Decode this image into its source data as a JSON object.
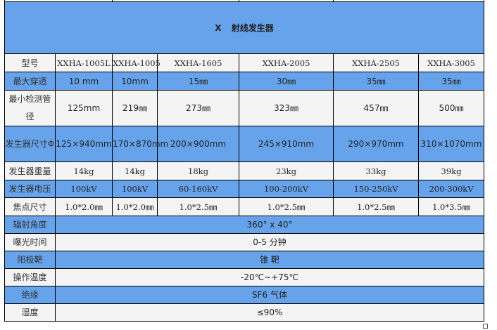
{
  "title": "X 射线发生器",
  "colors": {
    "row_blue": "#66a3eb",
    "row_light": "#f4f4f4"
  },
  "models": {
    "label": "型号",
    "values": [
      "XXHA-1005L",
      "XXHA-1005",
      "XXHA-1605",
      "XXHA-2005",
      "XXHA-2505",
      "XXHA-3005"
    ]
  },
  "rows": [
    {
      "label": "最大穿透",
      "values": [
        "10 mm",
        "10mm",
        "15㎜",
        "30㎜",
        "35㎜",
        "35㎜"
      ]
    },
    {
      "label": "最小检测管径",
      "values": [
        "125mm",
        "219㎜",
        "273㎜",
        "323㎜",
        "457㎜",
        "500㎜"
      ]
    },
    {
      "label": "发生器尺寸Φ",
      "values": [
        "125×940mm",
        "170×870mm",
        "200×900mm",
        "245×910mm",
        "290×970mm",
        "310×1070mm"
      ]
    },
    {
      "label": "发生器重量",
      "values": [
        "14kg",
        "14kg",
        "18kg",
        "23kg",
        "33kg",
        "39kg"
      ]
    },
    {
      "label": "发生器电压",
      "values": [
        "100kV",
        "100kV",
        "60-160kV",
        "100-200kV",
        "150-250kV",
        "200-300kV"
      ]
    },
    {
      "label": "焦点尺寸",
      "values": [
        "1.0*2.0㎜",
        "1.0*2.0㎜",
        "1.0*2.5㎜",
        "1.0*2.5㎜",
        "1.0*2.5㎜",
        "1.0*3.5㎜"
      ]
    }
  ],
  "shared_rows": [
    {
      "label": "辐射角度",
      "value": "360° x 40°"
    },
    {
      "label": "曝光时间",
      "value": "0-5 分钟"
    },
    {
      "label": "阳极靶",
      "value": "锥  靶"
    },
    {
      "label": "操作温度",
      "value": "-20℃~+75℃"
    },
    {
      "label": "绝缘",
      "value": "SF6 气体"
    },
    {
      "label": "湿度",
      "value": "≤90%"
    }
  ]
}
